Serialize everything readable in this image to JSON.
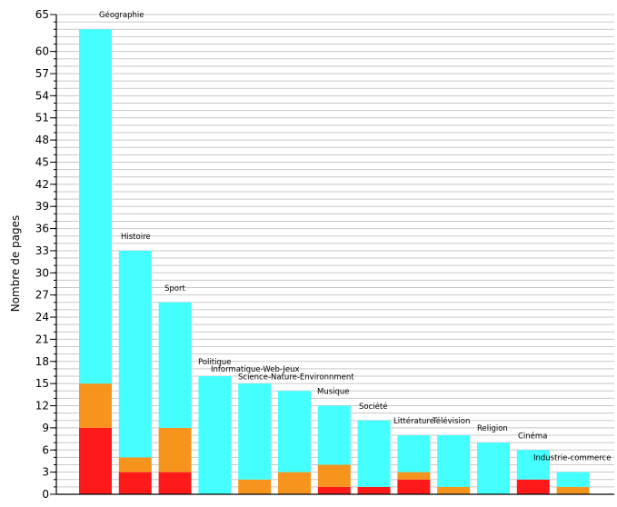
{
  "chart_data": {
    "type": "bar",
    "stacked": true,
    "ylabel": "Nombre de pages",
    "ylim": [
      0,
      65
    ],
    "y_ticks": [
      "0",
      "3",
      "6",
      "9",
      "12",
      "15",
      "18",
      "21",
      "24",
      "27",
      "30",
      "33",
      "36",
      "39",
      "42",
      "45",
      "48",
      "51",
      "54",
      "57",
      "60",
      "65"
    ],
    "grid": true,
    "categories": [
      "Géographie",
      "Histoire",
      "Sport",
      "Politique",
      "Informatique-Web-Jeux",
      "Science-Nature-Environnment",
      "Musique",
      "Société",
      "Littérature",
      "Télévision",
      "Religion",
      "Cinéma",
      "Industrie-commerce"
    ],
    "series": [
      {
        "values": [
          9,
          3,
          3,
          0,
          0,
          0,
          1,
          1,
          2,
          0,
          0,
          2,
          0
        ]
      },
      {
        "values": [
          6,
          2,
          6,
          0,
          2,
          3,
          3,
          0,
          1,
          1,
          0,
          0,
          1
        ]
      },
      {
        "values": [
          48,
          28,
          17,
          16,
          13,
          11,
          8,
          9,
          5,
          7,
          7,
          4,
          2
        ]
      }
    ],
    "colors": [
      "#ff1a1a",
      "#f7941d",
      "#45ffff"
    ],
    "grid_color": "#c8c8c8"
  }
}
